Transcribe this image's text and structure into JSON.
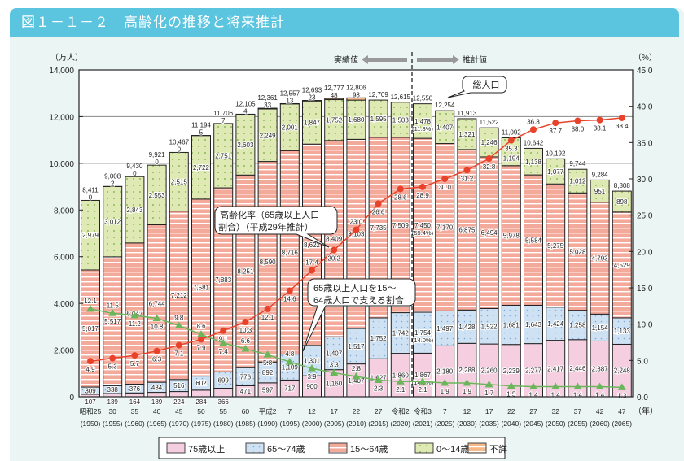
{
  "title": "図１－１－２　高齢化の推移と将来推計",
  "colors": {
    "age75plus": "#f5cfe0",
    "age65to74": "#cfe2f3",
    "age15to64": "#f4aa9b",
    "age0to14": "#dfe9b3",
    "unknown": "#f7b98a",
    "aging_rate": "#e8432a",
    "support_ratio": "#6bb65b",
    "title_bar": "#5bc4de"
  },
  "chart_data": {
    "type": "bar",
    "stacked": true,
    "title": "高齢化の推移と将来推計",
    "ylabel": "（万人）",
    "y2label": "（%）",
    "xlabel": "（年）",
    "ylim": [
      0,
      14000
    ],
    "y2lim": [
      0,
      45
    ],
    "yticks": [
      "0",
      "2,000",
      "4,000",
      "6,000",
      "8,000",
      "10,000",
      "12,000",
      "14,000"
    ],
    "y2ticks": [
      "0.0",
      "5.0",
      "10.0",
      "15.0",
      "20.0",
      "25.0",
      "30.0",
      "35.0",
      "40.0",
      "45.0"
    ],
    "categories_era": [
      "昭和25",
      "30",
      "35",
      "40",
      "45",
      "50",
      "55",
      "60",
      "平成2",
      "7",
      "12",
      "17",
      "22",
      "27",
      "令和2",
      "令和3",
      "7",
      "12",
      "17",
      "22",
      "27",
      "32",
      "37",
      "42",
      "47"
    ],
    "categories_year": [
      "(1950)",
      "(1955)",
      "(1960)",
      "(1965)",
      "(1970)",
      "(1975)",
      "(1980)",
      "(1985)",
      "(1990)",
      "(1995)",
      "(2000)",
      "(2005)",
      "(2010)",
      "(2015)",
      "(2020)",
      "(2021)",
      "(2025)",
      "(2030)",
      "(2035)",
      "(2040)",
      "(2045)",
      "(2050)",
      "(2055)",
      "(2060)",
      "(2065)"
    ],
    "series": [
      {
        "name": "75歳以上",
        "values": [
          107,
          139,
          164,
          189,
          224,
          284,
          366,
          471,
          597,
          717,
          900,
          1160,
          1407,
          1627,
          1860,
          1867,
          2180,
          2288,
          2260,
          2239,
          2277,
          2417,
          2446,
          2387,
          2248
        ]
      },
      {
        "name": "65～74歳",
        "values": [
          309,
          338,
          376,
          434,
          516,
          602,
          699,
          776,
          892,
          1109,
          1301,
          1407,
          1517,
          1752,
          1742,
          1754,
          1497,
          1428,
          1522,
          1681,
          1643,
          1424,
          1258,
          1154,
          1133
        ]
      },
      {
        "name": "15～64歳",
        "values": [
          5017,
          5517,
          6047,
          6744,
          7212,
          7581,
          7883,
          8251,
          8590,
          8716,
          8622,
          8409,
          8103,
          7735,
          7509,
          7450,
          7170,
          6875,
          6494,
          5978,
          5584,
          5275,
          5028,
          4793,
          4529
        ]
      },
      {
        "name": "0～14歳",
        "values": [
          2979,
          3012,
          2843,
          2553,
          2515,
          2722,
          2751,
          2603,
          2249,
          2001,
          1847,
          1752,
          1680,
          1595,
          1503,
          1478,
          1407,
          1321,
          1246,
          1194,
          1138,
          1077,
          1012,
          951,
          898
        ]
      },
      {
        "name": "不詳",
        "values": [
          0,
          2,
          0,
          0,
          0,
          5,
          7,
          4,
          33,
          13,
          23,
          48,
          98,
          null,
          null,
          null,
          null,
          null,
          null,
          null,
          null,
          null,
          null,
          null,
          null
        ]
      }
    ],
    "totals": [
      "8,411",
      "9,008",
      "9,430",
      "9,921",
      "10,467",
      "11,194",
      "11,706",
      "12,105",
      "12,361",
      "12,557",
      "12,693",
      "12,777",
      "12,806",
      "12,709",
      "12,615",
      "12,550",
      "12,254",
      "11,913",
      "11,522",
      "11,092",
      "10,642",
      "10,192",
      "9,744",
      "9,284",
      "8,808"
    ],
    "lines": [
      {
        "name": "高齢化率",
        "axis": "right",
        "values": [
          4.9,
          5.3,
          5.7,
          6.3,
          7.1,
          7.9,
          9.1,
          10.3,
          12.1,
          14.6,
          17.4,
          20.2,
          23.0,
          26.6,
          28.6,
          28.9,
          30.0,
          31.2,
          32.8,
          35.3,
          36.8,
          37.7,
          38.0,
          38.1,
          38.4
        ]
      },
      {
        "name": "65歳以上人口を15～64歳人口で支える割合",
        "axis": "right",
        "values": [
          12.1,
          11.5,
          11.2,
          10.8,
          9.8,
          8.6,
          7.4,
          6.6,
          5.8,
          4.8,
          3.9,
          3.3,
          2.8,
          2.3,
          2.1,
          2.1,
          1.9,
          1.9,
          1.7,
          1.5,
          1.4,
          1.4,
          1.4,
          1.4,
          1.3
        ]
      }
    ],
    "shares_2021": {
      "age0to14": "(11.8%)",
      "age15to64": "(59.4%)",
      "age65to74": "(14.0%)",
      "age75plus": "(14.9%)"
    },
    "annotations": {
      "actual": "実績値",
      "projected": "推計値",
      "total_callout": "総人口",
      "aging_callout_1": "高齢化率（65歳以上人口",
      "aging_callout_2": "割合）（平成29年推計）",
      "support_callout_1": "65歳以上人口を15～",
      "support_callout_2": "64歳人口で支える割合"
    },
    "legend_position": "bottom",
    "grid": false
  }
}
